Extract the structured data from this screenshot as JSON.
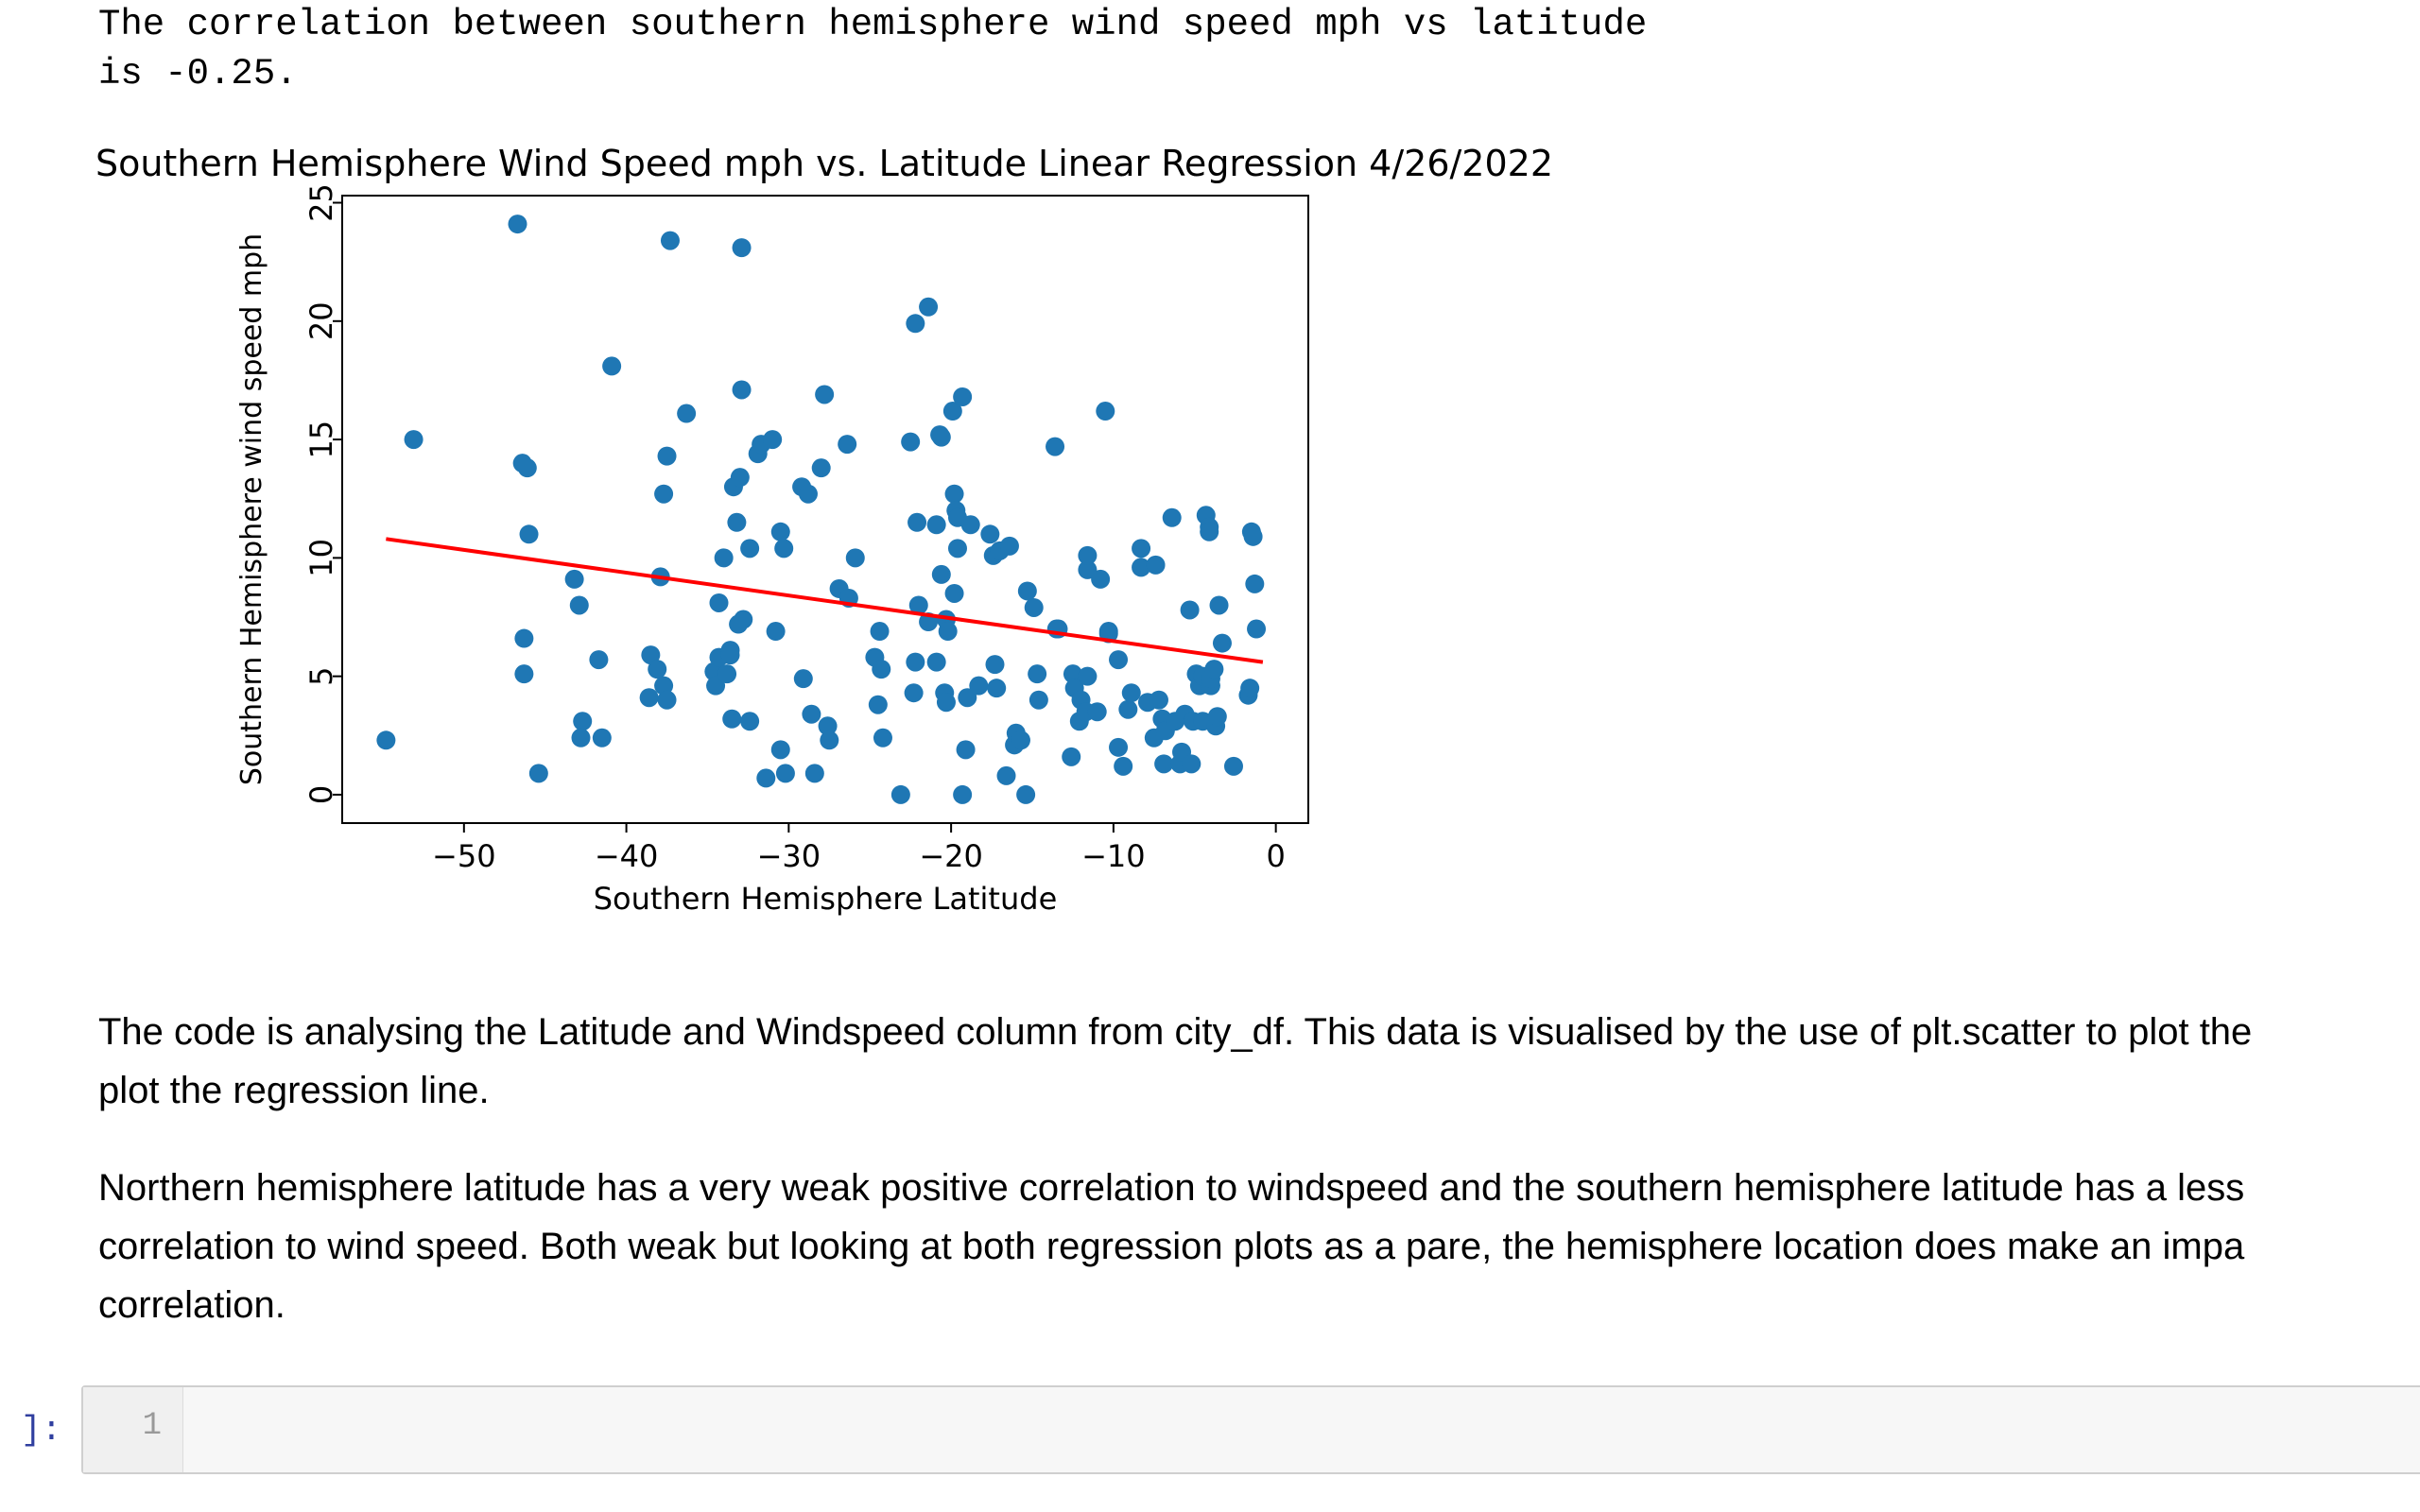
{
  "output": {
    "line1": "The correlation between southern hemisphere wind speed mph vs latitude",
    "line2": "is -0.25."
  },
  "chart_data": {
    "type": "scatter",
    "title": "Southern Hemisphere Wind Speed mph vs. Latitude Linear Regression 4/26/2022",
    "xlabel": "Southern Hemisphere Latitude",
    "ylabel": "Southern Hemisphere wind speed mph",
    "xlim": [
      -57.5,
      2
    ],
    "ylim": [
      -1.2,
      25.3
    ],
    "xticks": [
      -50,
      -40,
      -30,
      -20,
      -10,
      0
    ],
    "yticks": [
      0,
      5,
      10,
      15,
      20,
      25
    ],
    "xtick_labels": [
      "−50",
      "−40",
      "−30",
      "−20",
      "−10",
      "0"
    ],
    "ytick_labels": [
      "0",
      "5",
      "10",
      "15",
      "20",
      "25"
    ],
    "grid": false,
    "marker_color": "#1f77b4",
    "line_color": "#ff0000",
    "regression": {
      "x": [
        -54.8,
        -0.8
      ],
      "y": [
        10.8,
        5.6
      ]
    },
    "points": [
      [
        -54.8,
        2.3
      ],
      [
        -53.1,
        15.0
      ],
      [
        -46.7,
        24.1
      ],
      [
        -46.4,
        14.0
      ],
      [
        -46.1,
        13.8
      ],
      [
        -46.0,
        11.0
      ],
      [
        -46.3,
        6.6
      ],
      [
        -46.3,
        5.1
      ],
      [
        -45.4,
        0.9
      ],
      [
        -43.2,
        9.1
      ],
      [
        -42.9,
        8.0
      ],
      [
        -42.7,
        3.1
      ],
      [
        -42.8,
        2.4
      ],
      [
        -41.5,
        2.4
      ],
      [
        -41.7,
        5.7
      ],
      [
        -40.9,
        18.1
      ],
      [
        -38.6,
        4.1
      ],
      [
        -38.5,
        5.9
      ],
      [
        -37.9,
        9.2
      ],
      [
        -38.1,
        5.3
      ],
      [
        -37.7,
        4.6
      ],
      [
        -37.5,
        4.0
      ],
      [
        -37.7,
        12.7
      ],
      [
        -37.5,
        14.3
      ],
      [
        -37.3,
        23.4
      ],
      [
        -36.3,
        16.1
      ],
      [
        -34.6,
        5.2
      ],
      [
        -34.5,
        4.6
      ],
      [
        -34.3,
        5.8
      ],
      [
        -34.3,
        8.1
      ],
      [
        -33.6,
        6.1
      ],
      [
        -34.0,
        10.0
      ],
      [
        -33.8,
        5.1
      ],
      [
        -33.5,
        3.2
      ],
      [
        -33.6,
        5.9
      ],
      [
        -33.1,
        7.2
      ],
      [
        -32.8,
        7.4
      ],
      [
        -33.4,
        13.0
      ],
      [
        -33.2,
        11.5
      ],
      [
        -33.0,
        13.4
      ],
      [
        -32.9,
        23.1
      ],
      [
        -32.9,
        17.1
      ],
      [
        -32.4,
        10.4
      ],
      [
        -32.4,
        3.1
      ],
      [
        -31.9,
        14.4
      ],
      [
        -31.7,
        14.8
      ],
      [
        -31.4,
        0.7
      ],
      [
        -31.0,
        15.0
      ],
      [
        -30.8,
        6.9
      ],
      [
        -30.5,
        1.9
      ],
      [
        -30.5,
        11.1
      ],
      [
        -30.3,
        10.4
      ],
      [
        -30.2,
        0.9
      ],
      [
        -29.2,
        13.0
      ],
      [
        -29.1,
        4.9
      ],
      [
        -28.8,
        12.7
      ],
      [
        -28.6,
        3.4
      ],
      [
        -28.4,
        0.9
      ],
      [
        -28.0,
        13.8
      ],
      [
        -27.8,
        16.9
      ],
      [
        -27.6,
        2.9
      ],
      [
        -27.5,
        2.3
      ],
      [
        -26.9,
        8.7
      ],
      [
        -26.3,
        8.3
      ],
      [
        -26.4,
        14.8
      ],
      [
        -25.9,
        10.0
      ],
      [
        -24.7,
        5.8
      ],
      [
        -24.5,
        3.8
      ],
      [
        -24.4,
        6.9
      ],
      [
        -24.3,
        5.3
      ],
      [
        -24.2,
        2.4
      ],
      [
        -23.1,
        0.0
      ],
      [
        -22.5,
        14.9
      ],
      [
        -22.3,
        4.3
      ],
      [
        -22.1,
        11.5
      ],
      [
        -22.2,
        5.6
      ],
      [
        -22.2,
        19.9
      ],
      [
        -22.0,
        8.0
      ],
      [
        -21.4,
        20.6
      ],
      [
        -21.4,
        7.3
      ],
      [
        -20.9,
        11.4
      ],
      [
        -20.9,
        5.6
      ],
      [
        -20.7,
        15.2
      ],
      [
        -20.6,
        15.1
      ],
      [
        -20.6,
        9.3
      ],
      [
        -20.4,
        4.3
      ],
      [
        -20.3,
        7.4
      ],
      [
        -20.3,
        3.9
      ],
      [
        -20.2,
        6.9
      ],
      [
        -19.9,
        16.2
      ],
      [
        -19.8,
        12.7
      ],
      [
        -19.7,
        12.0
      ],
      [
        -19.6,
        10.4
      ],
      [
        -19.8,
        8.5
      ],
      [
        -19.6,
        11.7
      ],
      [
        -19.3,
        0.0
      ],
      [
        -19.3,
        16.8
      ],
      [
        -19.0,
        4.1
      ],
      [
        -19.1,
        1.9
      ],
      [
        -18.8,
        11.4
      ],
      [
        -18.3,
        4.6
      ],
      [
        -17.6,
        11.0
      ],
      [
        -17.4,
        10.1
      ],
      [
        -17.3,
        5.5
      ],
      [
        -17.2,
        4.5
      ],
      [
        -17.0,
        10.3
      ],
      [
        -16.6,
        0.8
      ],
      [
        -16.4,
        10.5
      ],
      [
        -16.1,
        2.1
      ],
      [
        -16.0,
        2.6
      ],
      [
        -15.7,
        2.3
      ],
      [
        -15.4,
        0.0
      ],
      [
        -15.3,
        8.6
      ],
      [
        -14.9,
        7.9
      ],
      [
        -14.7,
        5.1
      ],
      [
        -14.6,
        4.0
      ],
      [
        -13.6,
        14.7
      ],
      [
        -13.5,
        7.0
      ],
      [
        -13.4,
        7.0
      ],
      [
        -12.6,
        1.6
      ],
      [
        -12.5,
        5.1
      ],
      [
        -12.4,
        4.5
      ],
      [
        -12.1,
        3.1
      ],
      [
        -12.0,
        4.0
      ],
      [
        -11.7,
        3.5
      ],
      [
        -11.6,
        5.0
      ],
      [
        -11.6,
        9.5
      ],
      [
        -11.6,
        10.1
      ],
      [
        -11.0,
        3.5
      ],
      [
        -10.8,
        9.1
      ],
      [
        -10.5,
        16.2
      ],
      [
        -10.3,
        6.8
      ],
      [
        -10.3,
        6.9
      ],
      [
        -9.7,
        5.7
      ],
      [
        -9.7,
        2.0
      ],
      [
        -9.4,
        1.2
      ],
      [
        -9.1,
        3.6
      ],
      [
        -8.9,
        4.3
      ],
      [
        -8.3,
        10.4
      ],
      [
        -8.3,
        9.6
      ],
      [
        -7.9,
        3.9
      ],
      [
        -7.5,
        2.4
      ],
      [
        -7.4,
        9.7
      ],
      [
        -7.2,
        4.0
      ],
      [
        -7.0,
        3.2
      ],
      [
        -6.9,
        1.3
      ],
      [
        -6.8,
        2.7
      ],
      [
        -6.4,
        11.7
      ],
      [
        -6.2,
        3.1
      ],
      [
        -5.9,
        1.3
      ],
      [
        -5.8,
        1.8
      ],
      [
        -5.6,
        3.4
      ],
      [
        -5.3,
        7.8
      ],
      [
        -5.1,
        3.1
      ],
      [
        -5.2,
        1.3
      ],
      [
        -4.9,
        5.1
      ],
      [
        -4.7,
        4.6
      ],
      [
        -4.5,
        5.0
      ],
      [
        -4.5,
        3.1
      ],
      [
        -4.3,
        11.8
      ],
      [
        -4.1,
        11.3
      ],
      [
        -4.1,
        11.1
      ],
      [
        -4.0,
        4.6
      ],
      [
        -4.0,
        4.9
      ],
      [
        -3.8,
        5.3
      ],
      [
        -3.7,
        2.9
      ],
      [
        -3.6,
        3.3
      ],
      [
        -3.5,
        8.0
      ],
      [
        -3.3,
        6.4
      ],
      [
        -2.6,
        1.2
      ],
      [
        -1.7,
        4.2
      ],
      [
        -1.6,
        4.5
      ],
      [
        -1.5,
        11.1
      ],
      [
        -1.4,
        10.9
      ],
      [
        -1.2,
        7.0
      ],
      [
        -1.3,
        8.9
      ]
    ]
  },
  "markdown": {
    "para1": [
      "The code is analysing the Latitude and Windspeed column from city_df. This data is visualised by the use of plt.scatter to plot the",
      "plot the regression line."
    ],
    "para2": [
      "Northern hemisphere latitude has a very weak positive correlation to windspeed and the southern hemisphere latitude has a less",
      "correlation to wind speed. Both weak but looking at both regression plots as a pare, the hemisphere location does make an impa",
      "correlation."
    ]
  },
  "code_cell": {
    "prompt": "]:",
    "line_number": "1"
  }
}
